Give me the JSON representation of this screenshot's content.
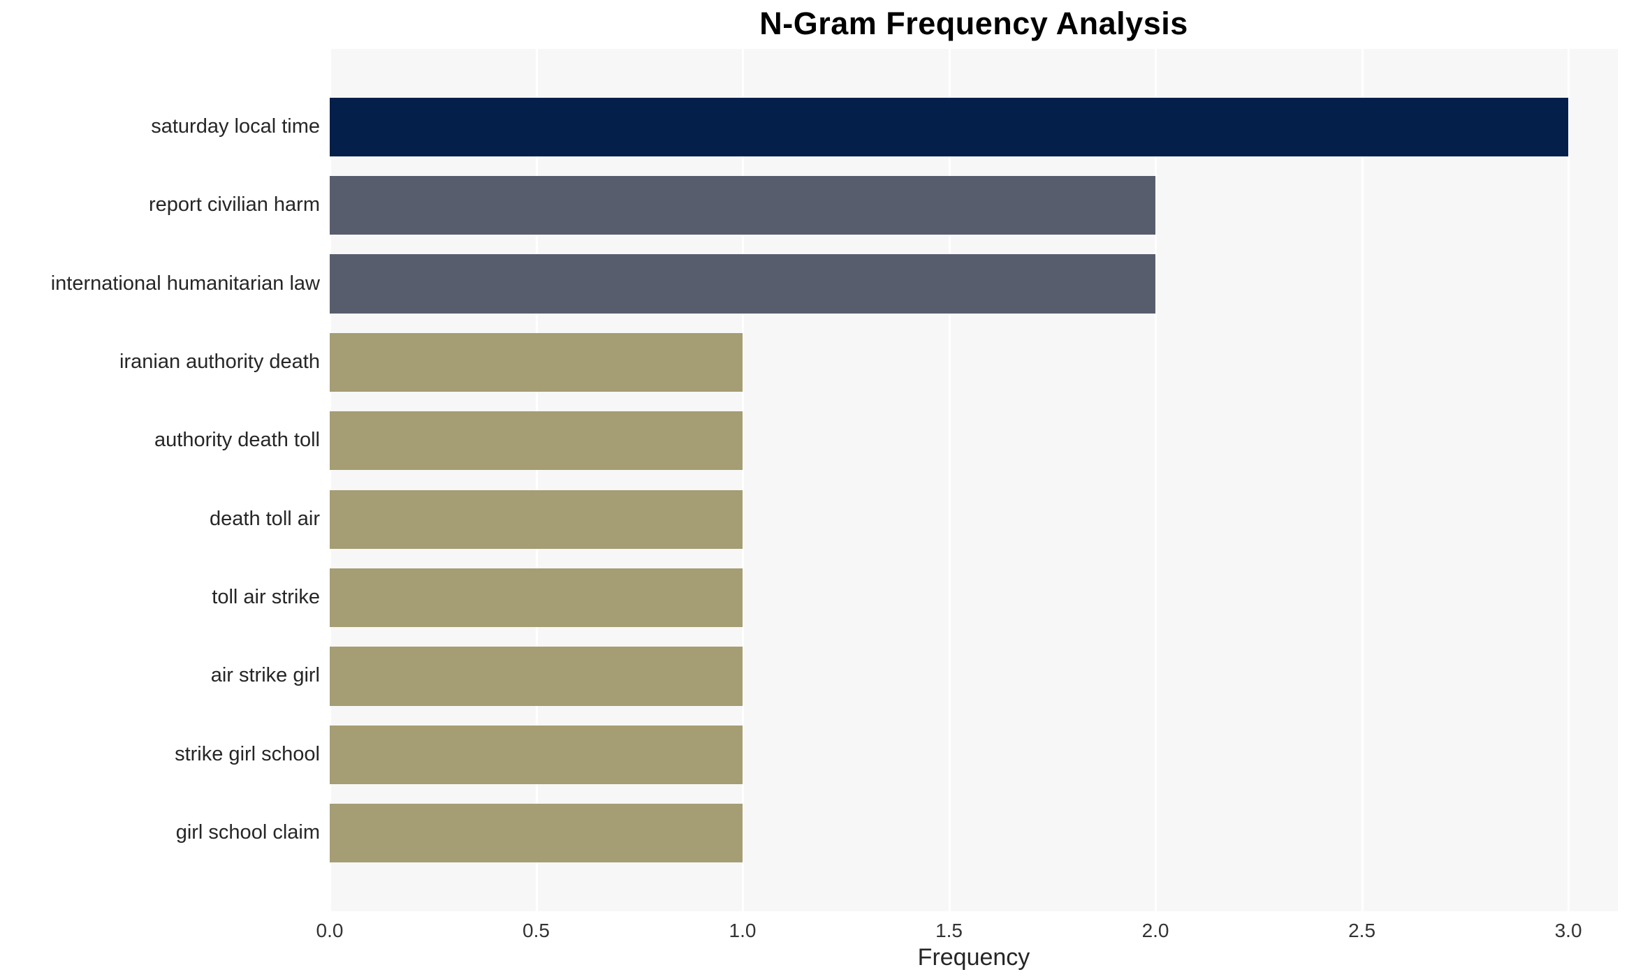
{
  "chart_data": {
    "type": "bar",
    "orientation": "horizontal",
    "title": "N-Gram Frequency Analysis",
    "xlabel": "Frequency",
    "ylabel": "",
    "categories": [
      "saturday local time",
      "report civilian harm",
      "international humanitarian law",
      "iranian authority death",
      "authority death toll",
      "death toll air",
      "toll air strike",
      "air strike girl",
      "strike girl school",
      "girl school claim"
    ],
    "values": [
      3,
      2,
      2,
      1,
      1,
      1,
      1,
      1,
      1,
      1
    ],
    "xlim": [
      0,
      3.12
    ],
    "xticks": [
      0,
      0.5,
      1,
      1.5,
      2,
      2.5,
      3
    ],
    "xtick_labels": [
      "0.0",
      "0.5",
      "1.0",
      "1.5",
      "2.0",
      "2.5",
      "3.0"
    ],
    "grid": "vertical-white-lines",
    "legend": "none",
    "bar_colors": [
      "#04204a",
      "#585d6e",
      "#585d6e",
      "#a59d73",
      "#a59d73",
      "#a59d73",
      "#a59d73",
      "#a59d73",
      "#a59d73",
      "#a59d73"
    ],
    "plot_bg": "#f7f7f7",
    "page_bg": "#ffffff",
    "text_color": "#262626"
  }
}
